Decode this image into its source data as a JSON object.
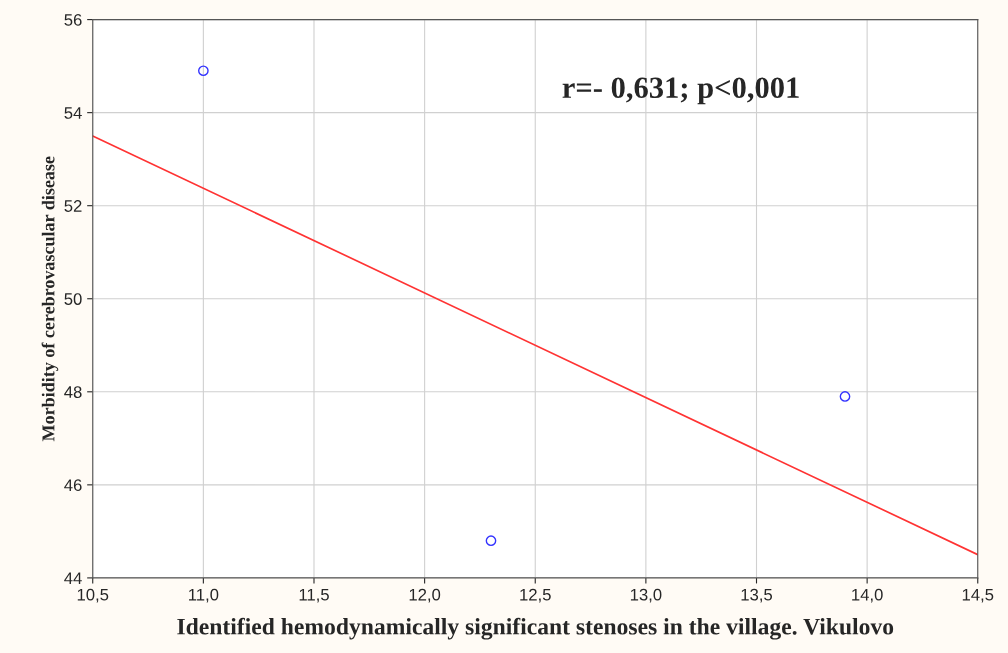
{
  "chart_data": {
    "type": "scatter",
    "xlabel": "Identified hemodynamically significant stenoses in the village. Vikulovo",
    "ylabel": "Morbidity of cerebrovascular disease",
    "series": [
      {
        "type": "scatter",
        "color": "#3333ff",
        "x": [
          11.0,
          12.3,
          13.9
        ],
        "values": [
          54.9,
          44.8,
          47.9
        ],
        "marker": "circle"
      },
      {
        "type": "line",
        "color": "#ff3333",
        "x": [
          10.5,
          14.5
        ],
        "values": [
          53.5,
          44.5
        ],
        "marker": "none",
        "line_style": "solid"
      }
    ],
    "annotations": [
      "r=- 0,631; p<0,001"
    ],
    "xlim": [
      10.5,
      14.5
    ],
    "xticks": [
      {
        "value": 10.5,
        "label": "10,5"
      },
      {
        "value": 11.0,
        "label": "11,0"
      },
      {
        "value": 11.5,
        "label": "11,5"
      },
      {
        "value": 12.0,
        "label": "12,0"
      },
      {
        "value": 12.5,
        "label": "12,5"
      },
      {
        "value": 13.0,
        "label": "13,0"
      },
      {
        "value": 13.5,
        "label": "13,5"
      },
      {
        "value": 14.0,
        "label": "14,0"
      },
      {
        "value": 14.5,
        "label": "14,5"
      }
    ],
    "ylim": [
      44,
      56
    ],
    "yticks": [
      44,
      46,
      48,
      50,
      52,
      54,
      56
    ],
    "grid": true,
    "legend": false
  }
}
